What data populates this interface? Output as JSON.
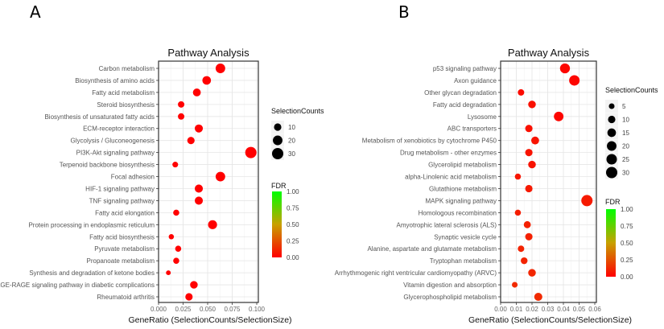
{
  "panels": [
    {
      "letter": "A",
      "chart_data": {
        "type": "scatter",
        "title": "Pathway Analysis",
        "xlabel": "GeneRatio (SelectionCounts/SelectionSize)",
        "ylabel": "",
        "xlim": [
          0,
          0.1
        ],
        "xticks": [
          "0.000",
          "0.025",
          "0.050",
          "0.075",
          "0.100"
        ],
        "xtick_values": [
          0,
          0.025,
          0.05,
          0.075,
          0.1
        ],
        "grid": true,
        "categories": [
          "Carbon metabolism",
          "Biosynthesis of amino acids",
          "Fatty acid metabolism",
          "Steroid biosynthesis",
          "Biosynthesis of unsaturated fatty acids",
          "ECM-receptor interaction",
          "Glycolysis / Gluconeogenesis",
          "PI3K-Akt signaling pathway",
          "Terpenoid backbone biosynthesis",
          "Focal adhesion",
          "HIF-1 signaling pathway",
          "TNF signaling pathway",
          "Fatty acid elongation",
          "Protein processing in endoplasmic reticulum",
          "Fatty acid biosynthesis",
          "Pyruvate metabolism",
          "Propanoate metabolism",
          "Synthesis and degradation of ketone bodies",
          "AGE-RAGE signaling pathway in diabetic complications",
          "Rheumatoid arthritis"
        ],
        "gene_ratio": [
          0.063,
          0.049,
          0.039,
          0.023,
          0.023,
          0.041,
          0.033,
          0.094,
          0.017,
          0.063,
          0.041,
          0.041,
          0.018,
          0.055,
          0.013,
          0.02,
          0.018,
          0.01,
          0.036,
          0.031
        ],
        "selection_counts": [
          20,
          15,
          12,
          7,
          7,
          13,
          10,
          30,
          5,
          20,
          13,
          13,
          6,
          17,
          4,
          6,
          6,
          3,
          11,
          10
        ],
        "fdr": [
          0,
          0,
          0,
          0,
          0,
          0,
          0,
          0,
          0,
          0,
          0,
          0,
          0,
          0,
          0,
          0,
          0,
          0,
          0,
          0
        ],
        "size_legend": {
          "title": "SelectionCounts",
          "values": [
            10,
            20,
            30
          ]
        },
        "color_legend": {
          "title": "FDR",
          "ticks": [
            "1.00",
            "0.75",
            "0.50",
            "0.25",
            "0.00"
          ],
          "range": [
            0,
            1
          ],
          "low_color": "#ff0000",
          "high_color": "#00ff00"
        },
        "legend_position": "right"
      }
    },
    {
      "letter": "B",
      "chart_data": {
        "type": "scatter",
        "title": "Pathway Analysis",
        "xlabel": "GeneRatio (SelectionCounts/SelectionSize)",
        "ylabel": "",
        "xlim": [
          0,
          0.06
        ],
        "xticks": [
          "0.00",
          "0.01",
          "0.02",
          "0.03",
          "0.04",
          "0.05",
          "0.06"
        ],
        "xtick_values": [
          0,
          0.01,
          0.02,
          0.03,
          0.04,
          0.05,
          0.06
        ],
        "grid": true,
        "categories": [
          "p53 signaling pathway",
          "Axon guidance",
          "Other glycan degradation",
          "Fatty acid degradation",
          "Lysosome",
          "ABC transporters",
          "Metabolism of xenobiotics by cytochrome P450",
          "Drug metabolism - other enzymes",
          "Glycerolipid metabolism",
          "alpha-Linolenic acid metabolism",
          "Glutathione metabolism",
          "MAPK signaling pathway",
          "Homologous recombination",
          "Amyotrophic lateral sclerosis (ALS)",
          "Synaptic vesicle cycle",
          "Alanine, aspartate and glutamate metabolism",
          "Tryptophan metabolism",
          "Arrhythmogenic right ventricular cardiomyopathy (ARVC)",
          "Vitamin digestion and absorption",
          "Glycerophospholipid metabolism"
        ],
        "gene_ratio": [
          0.041,
          0.047,
          0.013,
          0.02,
          0.037,
          0.018,
          0.022,
          0.018,
          0.02,
          0.011,
          0.018,
          0.055,
          0.011,
          0.017,
          0.018,
          0.013,
          0.015,
          0.02,
          0.009,
          0.024
        ],
        "selection_counts": [
          22,
          25,
          7,
          11,
          20,
          10,
          12,
          10,
          11,
          6,
          10,
          30,
          6,
          9,
          10,
          7,
          8,
          11,
          5,
          13
        ],
        "fdr": [
          0.02,
          0.02,
          0.03,
          0.05,
          0.02,
          0.05,
          0.06,
          0.06,
          0.06,
          0.07,
          0.08,
          0.08,
          0.09,
          0.1,
          0.1,
          0.11,
          0.11,
          0.12,
          0.13,
          0.13
        ],
        "size_legend": {
          "title": "SelectionCounts",
          "values": [
            5,
            10,
            15,
            20,
            25,
            30
          ]
        },
        "color_legend": {
          "title": "FDR",
          "ticks": [
            "1.00",
            "0.75",
            "0.50",
            "0.25",
            "0.00"
          ],
          "range": [
            0,
            1
          ],
          "low_color": "#ff0000",
          "high_color": "#00ff00"
        },
        "legend_position": "right"
      }
    }
  ]
}
